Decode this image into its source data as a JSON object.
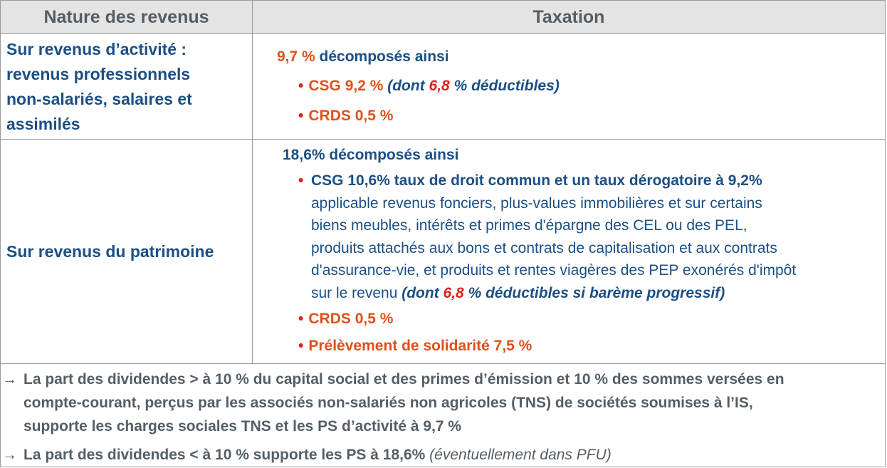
{
  "header": {
    "col1": "Nature des revenus",
    "col2": "Taxation"
  },
  "row1": {
    "label_lines": [
      "Sur revenus d’activité :",
      "revenus professionnels",
      "non-salariés, salaires et",
      "assimilés"
    ],
    "total_value": "9,7 %",
    "total_text": " décomposés ainsi",
    "csg_label": "CSG 9,2 %",
    "csg_note_open": " (dont ",
    "csg_note_value": "6,8",
    "csg_note_close": " % déductibles)",
    "crds_label": "CRDS 0,5 %"
  },
  "row2": {
    "label": "Sur revenus du patrimoine",
    "total_text": "18,6% décomposés ainsi",
    "csg_title": "CSG 10,6% taux de droit commun et un taux dérogatoire à 9,2%",
    "csg_lines": [
      "applicable revenus fonciers, plus-values immobilières et sur certains",
      "biens meubles, intérêts et primes d'épargne des CEL ou des PEL,",
      "produits attachés aux bons et contrats de capitalisation et aux contrats",
      "d'assurance-vie, et produits et rentes viagères des PEP exonérés d'impôt"
    ],
    "csg_last_line": "sur le revenu ",
    "csg_note_open": " (dont ",
    "csg_note_value": "6,8",
    "csg_note_close": " % déductibles si barème progressif)",
    "crds_label": "CRDS 0,5 %",
    "prelevement_label": "Prélèvement de solidarité 7,5 %"
  },
  "footer": {
    "arrow_symbol": "→",
    "item1_lines": [
      "La part des dividendes > à 10 % du capital social et des primes d’émission et 10 % des sommes versées en",
      "compte-courant, perçus par les associés non-salariés non agricoles (TNS) de sociétés soumises à l’IS,",
      "supporte les charges sociales TNS et les PS d’activité à 9,7 %"
    ],
    "item2_text": "La part des dividendes < à 10 % supporte les PS à 18,6% ",
    "item2_note": "(éventuellement dans PFU)"
  },
  "colors": {
    "title_blue": "#1c4f84",
    "accent_orange": "#e0501a",
    "accent_red": "#e31f1f",
    "header_gray": "#555e66",
    "header_bg": "#e4e4e4"
  }
}
